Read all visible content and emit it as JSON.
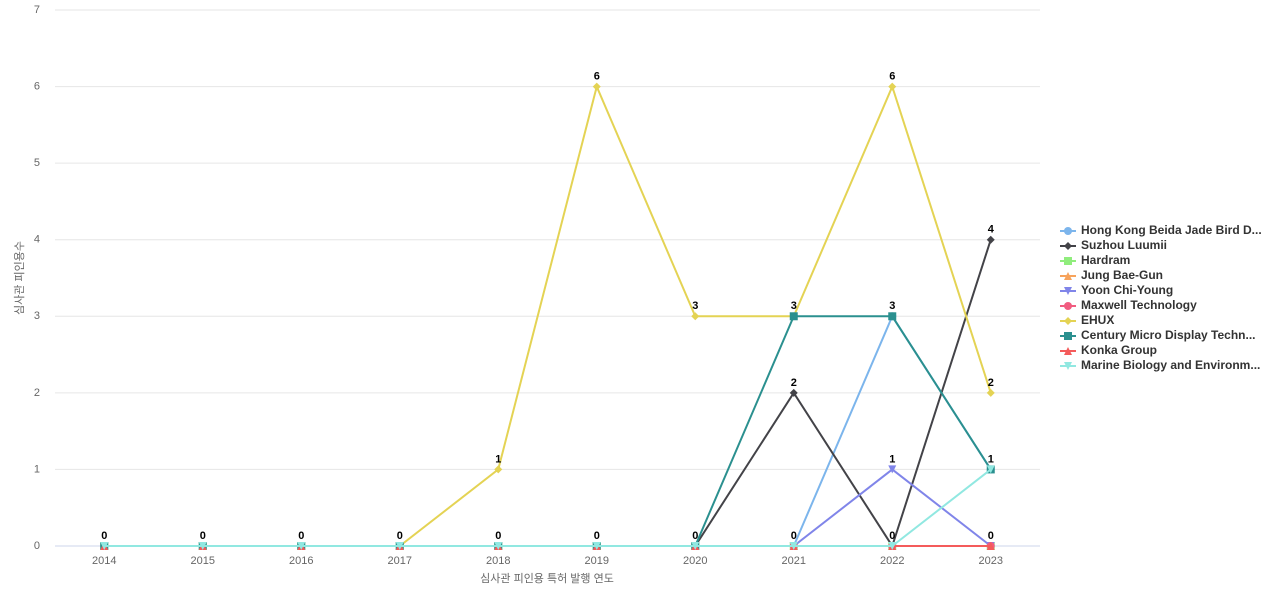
{
  "chart_data": {
    "type": "line",
    "x_label": "심사관 피인용 특허 발행 연도",
    "y_label": "심사관 피인용수",
    "categories": [
      "2014",
      "2015",
      "2016",
      "2017",
      "2018",
      "2019",
      "2020",
      "2021",
      "2022",
      "2023"
    ],
    "ylim": [
      0,
      7
    ],
    "yticks": [
      0,
      1,
      2,
      3,
      4,
      5,
      6,
      7
    ],
    "grid": true,
    "legend": "right",
    "series": [
      {
        "name": "Hong Kong Beida Jade Bird D...",
        "color": "#7cb5ec",
        "marker": "circle",
        "values": [
          0,
          0,
          0,
          0,
          0,
          0,
          0,
          0,
          3,
          1
        ]
      },
      {
        "name": "Suzhou Luumii",
        "color": "#434348",
        "marker": "diamond",
        "values": [
          0,
          0,
          0,
          0,
          0,
          0,
          0,
          2,
          0,
          4
        ]
      },
      {
        "name": "Hardram",
        "color": "#90ed7d",
        "marker": "square",
        "values": [
          0,
          0,
          0,
          0,
          0,
          0,
          0,
          0,
          0,
          0
        ]
      },
      {
        "name": "Jung Bae-Gun",
        "color": "#f7a35c",
        "marker": "triangle",
        "values": [
          0,
          0,
          0,
          0,
          0,
          0,
          0,
          0,
          0,
          0
        ]
      },
      {
        "name": "Yoon Chi-Young",
        "color": "#8085e9",
        "marker": "triangle-down",
        "values": [
          0,
          0,
          0,
          0,
          0,
          0,
          0,
          0,
          1,
          0
        ]
      },
      {
        "name": "Maxwell Technology",
        "color": "#f15c80",
        "marker": "circle",
        "values": [
          0,
          0,
          0,
          0,
          0,
          0,
          0,
          0,
          0,
          0
        ]
      },
      {
        "name": "EHUX",
        "color": "#e4d354",
        "marker": "diamond",
        "values": [
          0,
          0,
          0,
          0,
          1,
          6,
          3,
          3,
          6,
          2
        ]
      },
      {
        "name": "Century Micro Display Techn...",
        "color": "#2b908f",
        "marker": "square",
        "values": [
          0,
          0,
          0,
          0,
          0,
          0,
          0,
          3,
          3,
          1
        ]
      },
      {
        "name": "Konka Group",
        "color": "#f45b5b",
        "marker": "triangle",
        "values": [
          0,
          0,
          0,
          0,
          0,
          0,
          0,
          0,
          0,
          0
        ]
      },
      {
        "name": "Marine Biology and Environm...",
        "color": "#91e8e1",
        "marker": "triangle-down",
        "values": [
          0,
          0,
          0,
          0,
          0,
          0,
          0,
          0,
          0,
          1
        ]
      }
    ]
  }
}
